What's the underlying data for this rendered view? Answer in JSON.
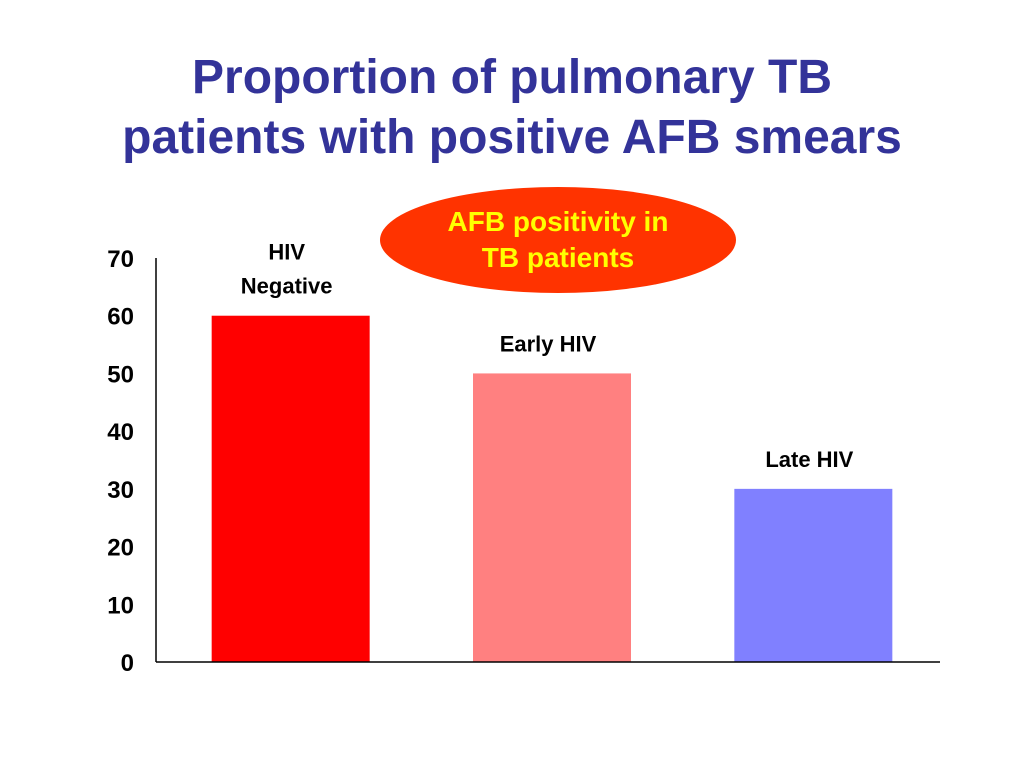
{
  "title_lines": [
    "Proportion of pulmonary TB",
    "patients with positive AFB smears"
  ],
  "callout": {
    "lines": [
      "AFB positivity in",
      "TB patients"
    ],
    "fill": "#ff3300",
    "text_color": "#ffff00"
  },
  "chart_data": {
    "type": "bar",
    "categories": [
      [
        "HIV",
        "Negative"
      ],
      [
        "Early HIV"
      ],
      [
        "Late HIV"
      ]
    ],
    "values": [
      60,
      50,
      30
    ],
    "colors": [
      "#ff0000",
      "#ff8080",
      "#8080ff"
    ],
    "ylim": [
      0,
      70
    ],
    "yticks": [
      0,
      10,
      20,
      30,
      40,
      50,
      60,
      70
    ],
    "grid": false,
    "xlabel": "",
    "ylabel": ""
  }
}
